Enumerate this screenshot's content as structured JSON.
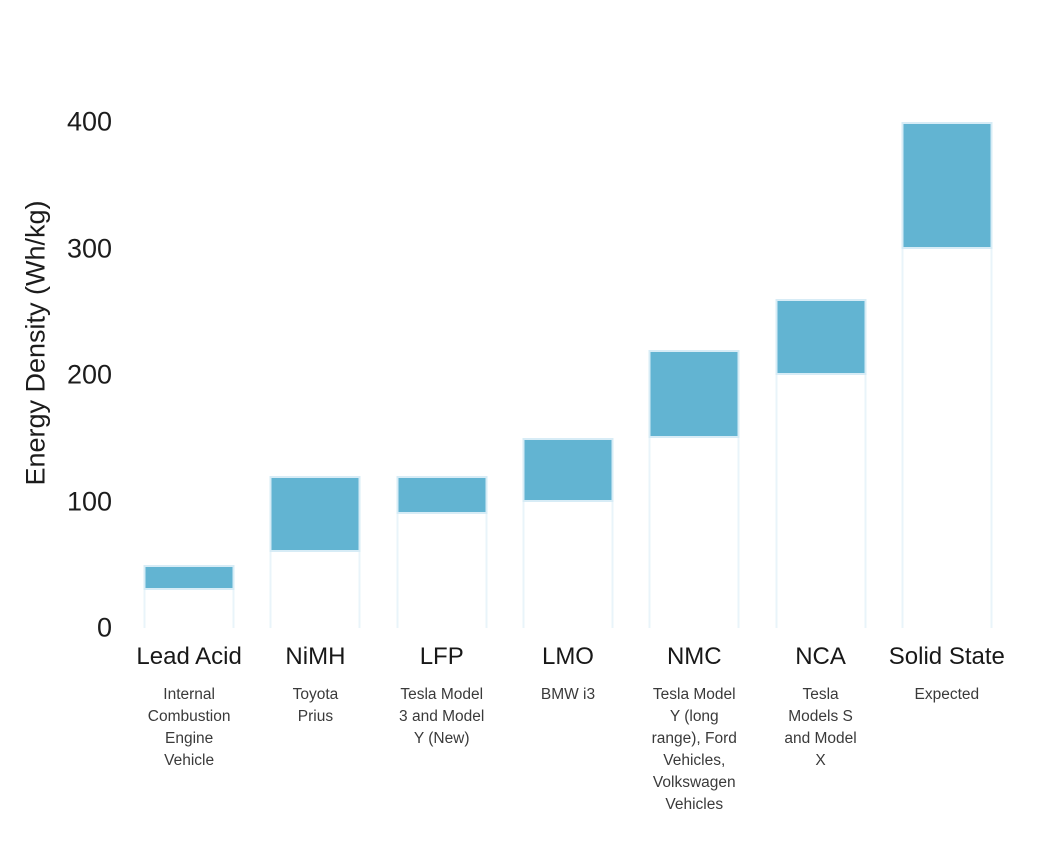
{
  "chart_data": {
    "type": "bar",
    "subtype": "floating-range-columns",
    "title": "",
    "ylabel": "Energy Density (Wh/kg)",
    "xlabel": "",
    "yticks": [
      0,
      100,
      200,
      300,
      400
    ],
    "ylim": [
      0,
      400
    ],
    "grid": false,
    "legend": false,
    "bar_color": "#62b4d2",
    "bar_outline_color": "#d7ecf6",
    "base_bar_fill": "#ffffff",
    "base_bar_outline_color": "#e9f4fa",
    "background_color": "#ffffff",
    "categories": [
      {
        "label": "Lead Acid",
        "sublabel": "Internal\nCombustion\nEngine\nVehicle",
        "range": [
          30,
          50
        ]
      },
      {
        "label": "NiMH",
        "sublabel": "Toyota\nPrius",
        "range": [
          60,
          120
        ]
      },
      {
        "label": "LFP",
        "sublabel": "Tesla Model\n3 and Model\nY (New)",
        "range": [
          90,
          120
        ]
      },
      {
        "label": "LMO",
        "sublabel": "BMW i3",
        "range": [
          100,
          150
        ]
      },
      {
        "label": "NMC",
        "sublabel": "Tesla Model\nY (long\nrange), Ford\nVehicles,\nVolkswagen\nVehicles",
        "range": [
          150,
          220
        ]
      },
      {
        "label": "NCA",
        "sublabel": "Tesla\nModels S\nand Model\nX",
        "range": [
          200,
          260
        ]
      },
      {
        "label": "Solid State",
        "sublabel": "Expected",
        "range": [
          300,
          400
        ]
      }
    ]
  }
}
